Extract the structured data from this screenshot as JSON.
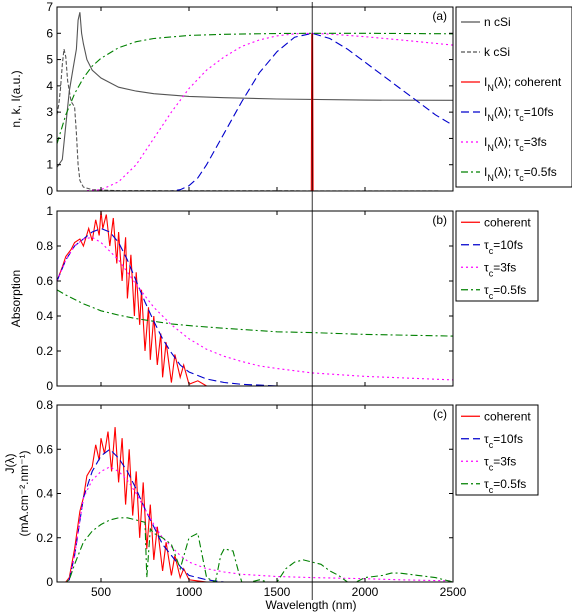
{
  "figure": {
    "xlabel": "Wavelength (nm)",
    "vline_x": 1700,
    "x_ticks": [
      500,
      1000,
      1500,
      2000,
      2500
    ],
    "xlim": [
      250,
      2500
    ]
  },
  "chart_data": [
    {
      "panel_label": "(a)",
      "type": "line",
      "ylabel": "n, k, I(a.u.)",
      "ylim": [
        0,
        7
      ],
      "y_ticks": [
        0,
        1,
        2,
        3,
        4,
        5,
        6,
        7
      ],
      "legend_position": "top-right",
      "series": [
        {
          "name": "n cSi",
          "color": "#555555",
          "dash": "solid",
          "x": [
            250,
            280,
            300,
            320,
            340,
            360,
            370,
            380,
            390,
            400,
            420,
            450,
            500,
            600,
            700,
            800,
            1000,
            1200,
            1500,
            2000,
            2500
          ],
          "y": [
            0.9,
            1.2,
            2.5,
            3.8,
            4.6,
            5.4,
            6.5,
            6.8,
            6.0,
            5.6,
            5.0,
            4.6,
            4.3,
            3.95,
            3.8,
            3.7,
            3.6,
            3.55,
            3.5,
            3.46,
            3.45
          ]
        },
        {
          "name": "k cSi",
          "color": "#555555",
          "dash": "4,2",
          "x": [
            250,
            260,
            270,
            280,
            290,
            300,
            310,
            330,
            350,
            360,
            370,
            380,
            400,
            450,
            600,
            2500
          ],
          "y": [
            2.9,
            3.3,
            3.9,
            4.8,
            5.4,
            5.1,
            4.2,
            3.4,
            3.2,
            2.2,
            1.0,
            0.4,
            0.15,
            0.05,
            0.01,
            0
          ]
        },
        {
          "name": "I_N(λ); coherent",
          "color": "#ff0000",
          "dash": "solid",
          "x": [
            250,
            1695,
            1698,
            1700,
            1702,
            1705,
            2500
          ],
          "y": [
            0,
            0,
            5.99,
            5.99,
            5.99,
            0,
            0
          ]
        },
        {
          "name": "I_N(λ); τ_c=10fs",
          "color": "#0000cc",
          "dash": "8,4",
          "x": [
            250,
            900,
            950,
            1000,
            1050,
            1100,
            1200,
            1300,
            1400,
            1500,
            1600,
            1700,
            1800,
            1900,
            2000,
            2100,
            2200,
            2300,
            2400,
            2500
          ],
          "y": [
            0,
            0,
            0.05,
            0.2,
            0.5,
            1.0,
            2.2,
            3.4,
            4.5,
            5.3,
            5.85,
            6.0,
            5.8,
            5.4,
            4.9,
            4.4,
            3.9,
            3.4,
            2.9,
            2.5
          ]
        },
        {
          "name": "I_N(λ); τ_c=3fs",
          "color": "#ff00ff",
          "dash": "2,3",
          "x": [
            250,
            400,
            500,
            600,
            700,
            800,
            900,
            1000,
            1100,
            1200,
            1300,
            1400,
            1500,
            1600,
            1700,
            1800,
            2000,
            2200,
            2500
          ],
          "y": [
            0,
            0,
            0.05,
            0.35,
            1.0,
            2.0,
            3.0,
            3.9,
            4.6,
            5.1,
            5.5,
            5.75,
            5.9,
            5.98,
            6.0,
            5.97,
            5.87,
            5.75,
            5.55
          ]
        },
        {
          "name": "I_N(λ); τ_c=0.5fs",
          "color": "#008000",
          "dash": "7,3,2,3",
          "x": [
            250,
            300,
            350,
            400,
            450,
            500,
            600,
            700,
            800,
            1000,
            1200,
            1500,
            1700,
            2000,
            2500
          ],
          "y": [
            1.8,
            2.9,
            3.7,
            4.3,
            4.75,
            5.05,
            5.45,
            5.68,
            5.8,
            5.92,
            5.96,
            5.99,
            6.0,
            6.0,
            5.98
          ]
        }
      ]
    },
    {
      "panel_label": "(b)",
      "type": "line",
      "ylabel": "Absorption",
      "ylim": [
        0,
        1
      ],
      "y_ticks": [
        0,
        0.2,
        0.4,
        0.6,
        0.8,
        1
      ],
      "legend_position": "top-right",
      "series": [
        {
          "name": "coherent",
          "color": "#ff0000",
          "dash": "solid",
          "x": [
            250,
            280,
            300,
            330,
            350,
            380,
            400,
            430,
            450,
            470,
            490,
            500,
            510,
            530,
            550,
            570,
            590,
            600,
            620,
            640,
            650,
            670,
            690,
            700,
            720,
            730,
            750,
            770,
            780,
            800,
            820,
            840,
            850,
            870,
            900,
            920,
            950,
            970,
            1000,
            1050,
            1100,
            1200,
            2500
          ],
          "y": [
            0.6,
            0.68,
            0.74,
            0.78,
            0.82,
            0.84,
            0.8,
            0.9,
            0.83,
            0.95,
            0.86,
            1.0,
            0.9,
            0.98,
            0.8,
            0.96,
            0.7,
            0.88,
            0.6,
            0.85,
            0.5,
            0.75,
            0.4,
            0.65,
            0.35,
            0.55,
            0.2,
            0.45,
            0.15,
            0.4,
            0.12,
            0.3,
            0.05,
            0.25,
            0.02,
            0.18,
            0.05,
            0.12,
            0.01,
            0.03,
            0,
            0,
            0
          ]
        },
        {
          "name": "τ_c=10fs",
          "color": "#0000cc",
          "dash": "8,4",
          "x": [
            250,
            300,
            350,
            400,
            450,
            500,
            550,
            600,
            650,
            700,
            750,
            800,
            850,
            900,
            950,
            1000,
            1100,
            1200,
            1300,
            1400,
            1500,
            1700,
            2000,
            2500
          ],
          "y": [
            0.6,
            0.72,
            0.8,
            0.84,
            0.88,
            0.9,
            0.88,
            0.82,
            0.72,
            0.6,
            0.48,
            0.37,
            0.27,
            0.19,
            0.12,
            0.08,
            0.04,
            0.02,
            0.01,
            0.005,
            0,
            0,
            0,
            0
          ]
        },
        {
          "name": "τ_c=3fs",
          "color": "#ff00ff",
          "dash": "2,3",
          "x": [
            250,
            300,
            350,
            400,
            450,
            500,
            600,
            700,
            800,
            900,
            1000,
            1100,
            1200,
            1300,
            1400,
            1500,
            1700,
            2000,
            2500
          ],
          "y": [
            0.6,
            0.72,
            0.8,
            0.84,
            0.85,
            0.82,
            0.72,
            0.58,
            0.45,
            0.35,
            0.27,
            0.21,
            0.17,
            0.14,
            0.115,
            0.1,
            0.075,
            0.055,
            0.035
          ]
        },
        {
          "name": "τ_c=0.5fs",
          "color": "#008000",
          "dash": "7,3,2,3",
          "x": [
            250,
            300,
            400,
            500,
            600,
            700,
            800,
            900,
            1000,
            1200,
            1500,
            1700,
            2000,
            2500
          ],
          "y": [
            0.55,
            0.52,
            0.47,
            0.43,
            0.405,
            0.385,
            0.37,
            0.355,
            0.345,
            0.33,
            0.31,
            0.305,
            0.295,
            0.285
          ]
        }
      ]
    },
    {
      "panel_label": "(c)",
      "type": "line",
      "ylabel": "J(λ)",
      "ylabel2": "(mA.cm⁻².nm⁻¹)",
      "ylim": [
        0,
        0.8
      ],
      "y_ticks": [
        0,
        0.2,
        0.4,
        0.6,
        0.8
      ],
      "legend_position": "top-right",
      "series": [
        {
          "name": "coherent",
          "color": "#ff0000",
          "dash": "solid",
          "x": [
            250,
            300,
            320,
            350,
            380,
            400,
            420,
            450,
            470,
            490,
            500,
            520,
            540,
            560,
            580,
            600,
            620,
            640,
            660,
            680,
            700,
            720,
            740,
            760,
            780,
            800,
            820,
            850,
            870,
            900,
            920,
            950,
            970,
            1000,
            1050,
            1100,
            1500,
            2500
          ],
          "y": [
            0,
            0,
            0.02,
            0.15,
            0.32,
            0.38,
            0.48,
            0.52,
            0.62,
            0.55,
            0.65,
            0.58,
            0.68,
            0.5,
            0.7,
            0.45,
            0.65,
            0.35,
            0.6,
            0.3,
            0.5,
            0.2,
            0.45,
            0.15,
            0.35,
            0.1,
            0.25,
            0.05,
            0.18,
            0.03,
            0.12,
            0.02,
            0.06,
            0.01,
            0.005,
            0,
            0,
            0
          ]
        },
        {
          "name": "τ_c=10fs",
          "color": "#0000cc",
          "dash": "8,4",
          "x": [
            250,
            300,
            320,
            350,
            400,
            450,
            500,
            550,
            600,
            650,
            700,
            750,
            800,
            850,
            900,
            950,
            1000,
            1100,
            1200,
            1300,
            2500
          ],
          "y": [
            0,
            0,
            0.01,
            0.12,
            0.38,
            0.5,
            0.57,
            0.6,
            0.56,
            0.5,
            0.42,
            0.33,
            0.25,
            0.17,
            0.12,
            0.07,
            0.03,
            0.01,
            0,
            0,
            0
          ]
        },
        {
          "name": "τ_c=3fs",
          "color": "#ff00ff",
          "dash": "2,3",
          "x": [
            250,
            300,
            320,
            350,
            400,
            450,
            500,
            550,
            600,
            650,
            700,
            750,
            800,
            850,
            900,
            950,
            1000,
            1100,
            1200,
            1300,
            1400,
            1500,
            1700,
            2000,
            2200,
            2500
          ],
          "y": [
            0,
            0,
            0.01,
            0.12,
            0.38,
            0.46,
            0.5,
            0.52,
            0.5,
            0.46,
            0.4,
            0.33,
            0.26,
            0.2,
            0.16,
            0.12,
            0.09,
            0.06,
            0.045,
            0.035,
            0.03,
            0.025,
            0.02,
            0.015,
            0.01,
            0.005
          ]
        },
        {
          "name": "τ_c=0.5fs",
          "color": "#008000",
          "dash": "7,3,2,3",
          "x": [
            250,
            300,
            320,
            350,
            400,
            450,
            500,
            550,
            600,
            650,
            700,
            750,
            760,
            780,
            800,
            850,
            900,
            950,
            1000,
            1050,
            1100,
            1150,
            1180,
            1200,
            1250,
            1280,
            1300,
            1350,
            1400,
            1450,
            1500,
            1550,
            1600,
            1650,
            1700,
            1750,
            1800,
            1850,
            1900,
            1950,
            2000,
            2100,
            2150,
            2200,
            2300,
            2400,
            2450,
            2500
          ],
          "y": [
            0,
            0,
            0.01,
            0.08,
            0.18,
            0.23,
            0.26,
            0.28,
            0.29,
            0.29,
            0.28,
            0.27,
            0.02,
            0.24,
            0.22,
            0.2,
            0.17,
            0.06,
            0.2,
            0.22,
            0.02,
            0.0,
            0.12,
            0.15,
            0.14,
            0.05,
            0.0,
            0.0,
            0.01,
            0.0,
            0.0,
            0.06,
            0.09,
            0.1,
            0.09,
            0.08,
            0.05,
            0.03,
            0.0,
            0.0,
            0.02,
            0.03,
            0.04,
            0.04,
            0.03,
            0.02,
            0.01,
            0.0
          ]
        }
      ]
    }
  ]
}
